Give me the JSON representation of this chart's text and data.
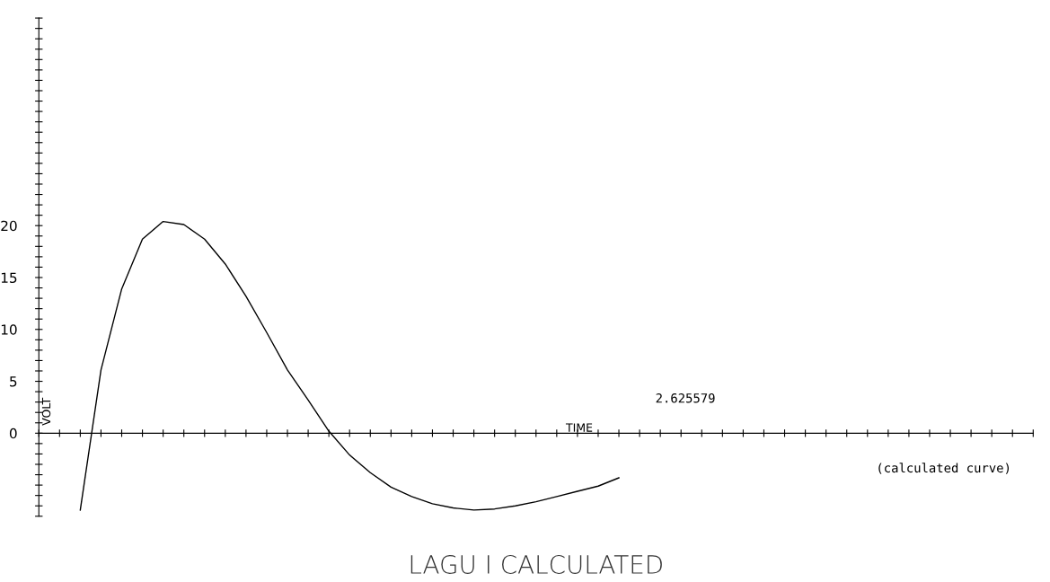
{
  "chart_data": {
    "type": "line",
    "title": "LAGU I CALCULATED",
    "xlabel": "TIME",
    "ylabel": "VOLT",
    "annotations": [
      "2.625579",
      "(calculated curve)"
    ],
    "categories": [
      null,
      null,
      null,
      null,
      null,
      null,
      null,
      null,
      null,
      null,
      null,
      null,
      null,
      null,
      null,
      null,
      null,
      null,
      null,
      null,
      null,
      null,
      null,
      null,
      null,
      null,
      null,
      null,
      null,
      null,
      null,
      null,
      null,
      null,
      null,
      null,
      null,
      null,
      null,
      null,
      null,
      null,
      null,
      null,
      null,
      null,
      null,
      null,
      null
    ],
    "series": [
      {
        "color": "#000000",
        "values": [
          null,
          null,
          -7.4,
          6.1,
          13.9,
          18.7,
          20.4,
          20.1,
          18.7,
          16.3,
          13.2,
          9.7,
          6.1,
          3.2,
          0.2,
          -2.1,
          -3.8,
          -5.2,
          -6.1,
          -6.8,
          -7.2,
          -7.4,
          -7.3,
          -7.0,
          -6.6,
          -6.1,
          -5.6,
          -5.1,
          -4.3,
          null,
          null,
          null,
          null,
          null,
          null,
          null,
          null,
          null,
          null,
          null,
          null,
          null,
          null,
          null,
          null,
          null,
          null,
          null,
          null
        ]
      }
    ],
    "ylim": [
      -8,
      40
    ],
    "yticks": [
      {
        "value": -8,
        "label": null
      },
      {
        "value": -7,
        "label": null
      },
      {
        "value": -6,
        "label": null
      },
      {
        "value": -5,
        "label": null
      },
      {
        "value": -4,
        "label": null
      },
      {
        "value": -3,
        "label": null
      },
      {
        "value": -2,
        "label": null
      },
      {
        "value": -1,
        "label": null
      },
      0,
      {
        "value": 1,
        "label": null
      },
      {
        "value": 2,
        "label": null
      },
      {
        "value": 3,
        "label": null
      },
      {
        "value": 4,
        "label": null
      },
      5,
      {
        "value": 6,
        "label": null
      },
      {
        "value": 7,
        "label": null
      },
      {
        "value": 8,
        "label": null
      },
      {
        "value": 9,
        "label": null
      },
      10,
      {
        "value": 11,
        "label": null
      },
      {
        "value": 12,
        "label": null
      },
      {
        "value": 13,
        "label": null
      },
      {
        "value": 14,
        "label": null
      },
      15,
      {
        "value": 16,
        "label": null
      },
      {
        "value": 17,
        "label": null
      },
      {
        "value": 18,
        "label": null
      },
      {
        "value": 19,
        "label": null
      },
      20,
      {
        "value": 21,
        "label": null
      },
      {
        "value": 22,
        "label": null
      },
      {
        "value": 23,
        "label": null
      },
      {
        "value": 24,
        "label": null
      },
      {
        "value": 25,
        "label": null
      },
      {
        "value": 26,
        "label": null
      },
      {
        "value": 27,
        "label": null
      },
      {
        "value": 28,
        "label": null
      },
      {
        "value": 29,
        "label": null
      },
      {
        "value": 30,
        "label": null
      },
      {
        "value": 31,
        "label": null
      },
      {
        "value": 32,
        "label": null
      },
      {
        "value": 33,
        "label": null
      },
      {
        "value": 34,
        "label": null
      },
      {
        "value": 35,
        "label": null
      },
      {
        "value": 36,
        "label": null
      },
      {
        "value": 37,
        "label": null
      },
      {
        "value": 38,
        "label": null
      },
      {
        "value": 39,
        "label": null
      },
      {
        "value": 40,
        "label": null
      }
    ],
    "legend": false,
    "marker": "none",
    "line_style": "solid"
  }
}
